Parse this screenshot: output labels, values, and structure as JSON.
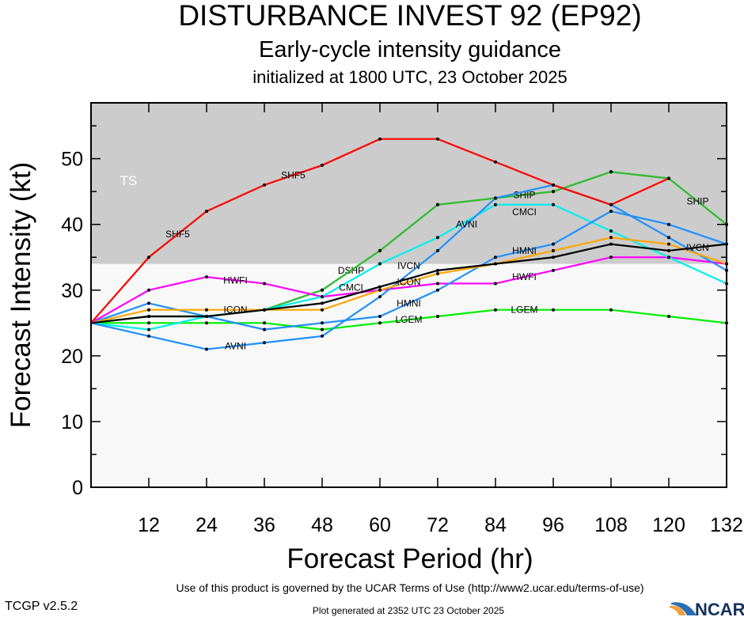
{
  "chart_data": {
    "type": "line",
    "title": "DISTURBANCE INVEST 92 (EP92)",
    "subtitle": "Early-cycle intensity guidance",
    "subtitle2": "initialized at 1800 UTC, 23 October 2025",
    "xlabel": "Forecast Period (hr)",
    "ylabel": "Forecast Intensity (kt)",
    "xlim": [
      0,
      132
    ],
    "ylim": [
      0,
      58.5
    ],
    "xticks": [
      12,
      24,
      36,
      48,
      60,
      72,
      84,
      96,
      108,
      120,
      132
    ],
    "yticks": [
      0,
      10,
      20,
      30,
      40,
      50
    ],
    "band": {
      "label": "TS",
      "from": 34,
      "color": "#cccccc"
    },
    "grid": false,
    "x": [
      0,
      12,
      24,
      36,
      48,
      60,
      72,
      84,
      96,
      108,
      120,
      132
    ],
    "series": [
      {
        "name": "LGEM",
        "color": "#00ee00",
        "values": [
          25,
          25,
          25,
          25,
          24,
          25,
          26,
          27,
          27,
          27,
          26,
          25
        ]
      },
      {
        "name": "DSHP",
        "color": "#33bb33",
        "values": [
          25,
          26,
          26,
          27,
          30,
          36,
          43,
          44,
          45,
          48,
          47,
          40
        ]
      },
      {
        "name": "SHIP",
        "color": "#33bb33",
        "values": [
          25,
          26,
          26,
          27,
          30,
          36,
          43,
          44,
          45,
          48,
          47,
          40
        ]
      },
      {
        "name": "HWFI",
        "color": "#ff00ff",
        "values": [
          25,
          30,
          32,
          31,
          29,
          30,
          31,
          31,
          33,
          35,
          35,
          34
        ]
      },
      {
        "name": "CMCI",
        "color": "#00eeee",
        "values": [
          25,
          24,
          26,
          27,
          29,
          34,
          38,
          43,
          43,
          39,
          35,
          31
        ]
      },
      {
        "name": "HMNI",
        "color": "#1e90ff",
        "values": [
          25,
          28,
          26,
          24,
          25,
          26,
          30,
          35,
          37,
          42,
          40,
          37
        ]
      },
      {
        "name": "AVNI",
        "color": "#1e90ff",
        "values": [
          25,
          23,
          21,
          22,
          23,
          29,
          36,
          44,
          46,
          43,
          38,
          33
        ]
      },
      {
        "name": "ICON",
        "color": "#ffa500",
        "values": [
          25,
          27,
          27,
          27,
          27,
          30,
          32.5,
          34,
          36,
          38,
          37,
          34
        ]
      },
      {
        "name": "IVCN",
        "color": "#000000",
        "values": [
          25,
          26,
          26,
          27,
          28,
          30.5,
          33,
          34,
          35,
          37,
          36,
          37
        ]
      },
      {
        "name": "SHF5",
        "color": "#ff0000",
        "values": [
          25,
          35,
          42,
          46,
          49,
          53,
          53,
          49.5,
          46,
          43,
          47,
          null
        ]
      }
    ]
  },
  "footer": {
    "terms": "Use of this product is governed by the UCAR Terms of Use (http://www2.ucar.edu/terms-of-use)",
    "version": "TCGP v2.5.2",
    "generated": "Plot generated at 2352 UTC   23 October 2025",
    "logo": "NCAR"
  }
}
